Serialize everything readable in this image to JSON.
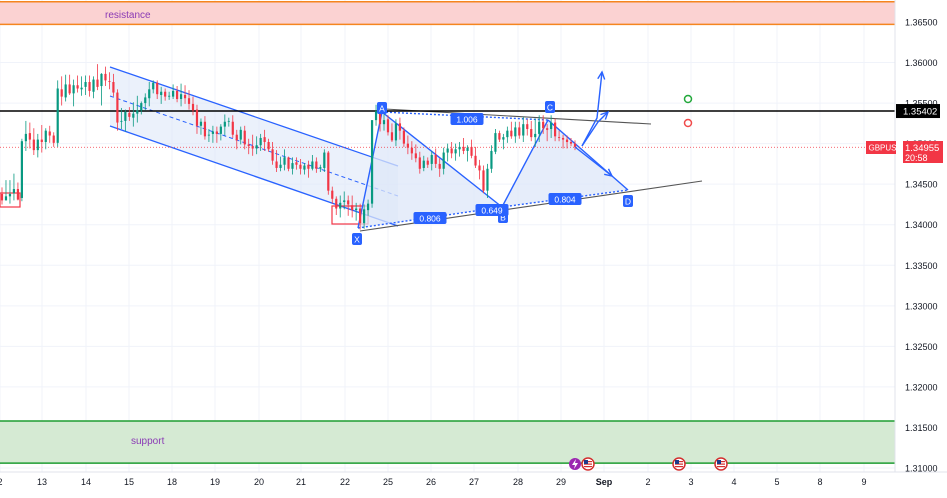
{
  "chart_data": {
    "type": "candlestick",
    "symbol": "GBPUSD",
    "x_tick_labels": [
      "2",
      "13",
      "14",
      "15",
      "18",
      "19",
      "20",
      "21",
      "22",
      "25",
      "26",
      "27",
      "28",
      "29",
      "Sep",
      "2",
      "3",
      "4",
      "5",
      "8",
      "9"
    ],
    "y_tick_labels": [
      "1.36500",
      "1.36000",
      "1.35500",
      "1.35000",
      "1.34500",
      "1.34000",
      "1.33500",
      "1.33000",
      "1.32500",
      "1.32000",
      "1.31500",
      "1.31000"
    ],
    "ylim": [
      1.3098,
      1.3683
    ],
    "price_levels": {
      "horizontal_line": {
        "value": 1.35402,
        "label": "1.35402"
      },
      "last_price": {
        "symbol": "GBPUSD",
        "value": 1.34955,
        "label": "1.34955",
        "countdown": "20:58"
      }
    },
    "zones": [
      {
        "name": "resistance",
        "label": "resistance",
        "from": 1.3647,
        "to": 1.3675,
        "color": "#fbd2d2",
        "border": "#f5851f"
      },
      {
        "name": "support",
        "label": "support",
        "from": 1.3106,
        "to": 1.3158,
        "color": "#d5ead3",
        "border": "#1f9d32"
      }
    ],
    "candles": [
      [
        0,
        1.3438,
        1.3446,
        1.3425,
        1.343
      ],
      [
        1,
        1.343,
        1.3455,
        1.343,
        1.3435
      ],
      [
        2,
        1.3435,
        1.3455,
        1.3426,
        1.3438
      ],
      [
        3,
        1.3439,
        1.3463,
        1.343,
        1.3444
      ],
      [
        4,
        1.3444,
        1.3452,
        1.343,
        1.3431
      ],
      [
        5,
        1.3433,
        1.3506,
        1.3429,
        1.3503
      ],
      [
        6,
        1.3503,
        1.3528,
        1.3491,
        1.3512
      ],
      [
        7,
        1.3513,
        1.3526,
        1.3494,
        1.3505
      ],
      [
        8,
        1.3505,
        1.3519,
        1.3486,
        1.3492
      ],
      [
        9,
        1.3492,
        1.3512,
        1.3483,
        1.3505
      ],
      [
        10,
        1.3505,
        1.3523,
        1.3489,
        1.3502
      ],
      [
        11,
        1.3502,
        1.3519,
        1.3493,
        1.3516
      ],
      [
        12,
        1.3515,
        1.3522,
        1.3501,
        1.351
      ],
      [
        13,
        1.351,
        1.3514,
        1.3496,
        1.3501
      ],
      [
        14,
        1.3501,
        1.3578,
        1.3496,
        1.3568
      ],
      [
        15,
        1.3567,
        1.3583,
        1.3547,
        1.3558
      ],
      [
        16,
        1.3557,
        1.3585,
        1.3552,
        1.3573
      ],
      [
        17,
        1.3573,
        1.3585,
        1.356,
        1.3562
      ],
      [
        18,
        1.3562,
        1.3579,
        1.3546,
        1.3572
      ],
      [
        19,
        1.3572,
        1.3584,
        1.3563,
        1.3568
      ],
      [
        20,
        1.3567,
        1.3583,
        1.3559,
        1.3569
      ],
      [
        21,
        1.357,
        1.3584,
        1.356,
        1.3576
      ],
      [
        22,
        1.3576,
        1.3584,
        1.3558,
        1.3565
      ],
      [
        23,
        1.3564,
        1.3583,
        1.3556,
        1.3579
      ],
      [
        24,
        1.3579,
        1.3598,
        1.3566,
        1.357
      ],
      [
        25,
        1.3571,
        1.3587,
        1.3547,
        1.3586
      ],
      [
        26,
        1.3586,
        1.3595,
        1.3571,
        1.3578
      ],
      [
        27,
        1.3577,
        1.3588,
        1.3567,
        1.3576
      ],
      [
        28,
        1.3576,
        1.3586,
        1.3558,
        1.3563
      ],
      [
        29,
        1.3563,
        1.3567,
        1.3516,
        1.3526
      ],
      [
        30,
        1.3527,
        1.3544,
        1.3518,
        1.3528
      ],
      [
        31,
        1.3528,
        1.3542,
        1.3515,
        1.3539
      ],
      [
        32,
        1.3538,
        1.3545,
        1.3528,
        1.3533
      ],
      [
        33,
        1.3532,
        1.3551,
        1.3521,
        1.3537
      ],
      [
        34,
        1.3537,
        1.3559,
        1.3526,
        1.3541
      ],
      [
        35,
        1.3541,
        1.3552,
        1.3536,
        1.355
      ],
      [
        36,
        1.355,
        1.3562,
        1.3541,
        1.3557
      ],
      [
        37,
        1.3556,
        1.3576,
        1.3546,
        1.3567
      ],
      [
        38,
        1.3567,
        1.3578,
        1.3562,
        1.3575
      ],
      [
        39,
        1.3575,
        1.3578,
        1.3555,
        1.3561
      ],
      [
        40,
        1.356,
        1.357,
        1.3549,
        1.3564
      ],
      [
        41,
        1.3564,
        1.3568,
        1.3553,
        1.3558
      ],
      [
        42,
        1.3559,
        1.3564,
        1.3554,
        1.3559
      ],
      [
        43,
        1.3558,
        1.3573,
        1.3555,
        1.3565
      ],
      [
        44,
        1.3565,
        1.3571,
        1.3551,
        1.3555
      ],
      [
        45,
        1.3555,
        1.3574,
        1.3546,
        1.3561
      ],
      [
        46,
        1.356,
        1.3572,
        1.3549,
        1.3556
      ],
      [
        47,
        1.3556,
        1.3566,
        1.3542,
        1.3549
      ],
      [
        48,
        1.3549,
        1.3558,
        1.3535,
        1.3541
      ],
      [
        49,
        1.3542,
        1.3548,
        1.3512,
        1.3522
      ],
      [
        50,
        1.3522,
        1.3531,
        1.3511,
        1.3527
      ],
      [
        51,
        1.3527,
        1.3534,
        1.3505,
        1.3509
      ],
      [
        52,
        1.351,
        1.3518,
        1.3502,
        1.3511
      ],
      [
        53,
        1.3512,
        1.3522,
        1.3501,
        1.3515
      ],
      [
        54,
        1.3515,
        1.3521,
        1.3501,
        1.3512
      ],
      [
        55,
        1.3512,
        1.3524,
        1.3504,
        1.3521
      ],
      [
        56,
        1.3521,
        1.3536,
        1.351,
        1.3527
      ],
      [
        57,
        1.3527,
        1.3532,
        1.3521,
        1.3528
      ],
      [
        58,
        1.3527,
        1.3535,
        1.3507,
        1.3511
      ],
      [
        59,
        1.3511,
        1.3517,
        1.3493,
        1.3504
      ],
      [
        60,
        1.3505,
        1.3521,
        1.3499,
        1.3517
      ],
      [
        61,
        1.3516,
        1.3522,
        1.3493,
        1.3499
      ],
      [
        62,
        1.3499,
        1.3506,
        1.3487,
        1.3497
      ],
      [
        63,
        1.3497,
        1.3511,
        1.3485,
        1.3494
      ],
      [
        64,
        1.3494,
        1.3509,
        1.3487,
        1.3498
      ],
      [
        65,
        1.3498,
        1.3512,
        1.3491,
        1.3507
      ],
      [
        66,
        1.3508,
        1.3517,
        1.3491,
        1.3502
      ],
      [
        67,
        1.3502,
        1.3506,
        1.349,
        1.3493
      ],
      [
        68,
        1.3493,
        1.3502,
        1.3474,
        1.3479
      ],
      [
        69,
        1.3478,
        1.3492,
        1.3465,
        1.347
      ],
      [
        70,
        1.347,
        1.3484,
        1.3466,
        1.3474
      ],
      [
        71,
        1.3474,
        1.3493,
        1.3467,
        1.3483
      ],
      [
        72,
        1.3483,
        1.3484,
        1.3466,
        1.3469
      ],
      [
        73,
        1.3469,
        1.3483,
        1.3462,
        1.3476
      ],
      [
        74,
        1.3477,
        1.3483,
        1.3468,
        1.3474
      ],
      [
        75,
        1.3474,
        1.3481,
        1.3462,
        1.3469
      ],
      [
        76,
        1.3468,
        1.3476,
        1.3462,
        1.3473
      ],
      [
        77,
        1.3474,
        1.3479,
        1.3458,
        1.3469
      ],
      [
        78,
        1.3469,
        1.3486,
        1.3467,
        1.3478
      ],
      [
        79,
        1.3478,
        1.3483,
        1.3464,
        1.3469
      ],
      [
        80,
        1.3469,
        1.3474,
        1.3465,
        1.3471
      ],
      [
        81,
        1.347,
        1.3493,
        1.3465,
        1.3489
      ],
      [
        82,
        1.3489,
        1.3491,
        1.3437,
        1.3442
      ],
      [
        83,
        1.3442,
        1.3447,
        1.3426,
        1.3432
      ],
      [
        84,
        1.3432,
        1.3435,
        1.3412,
        1.342
      ],
      [
        85,
        1.342,
        1.3436,
        1.3409,
        1.3427
      ],
      [
        86,
        1.3428,
        1.3441,
        1.3419,
        1.343
      ],
      [
        87,
        1.343,
        1.3436,
        1.3411,
        1.3425
      ],
      [
        88,
        1.3424,
        1.3436,
        1.3409,
        1.3418
      ],
      [
        89,
        1.3418,
        1.3427,
        1.3405,
        1.342
      ],
      [
        90,
        1.342,
        1.3426,
        1.3394,
        1.3402
      ],
      [
        91,
        1.3402,
        1.3425,
        1.3395,
        1.3419
      ],
      [
        92,
        1.3418,
        1.3431,
        1.3411,
        1.3426
      ],
      [
        93,
        1.3426,
        1.3529,
        1.3421,
        1.3529
      ],
      [
        94,
        1.3529,
        1.3548,
        1.3522,
        1.354
      ],
      [
        95,
        1.354,
        1.3546,
        1.3515,
        1.3524
      ],
      [
        96,
        1.3524,
        1.3538,
        1.3516,
        1.3529
      ],
      [
        97,
        1.353,
        1.3535,
        1.351,
        1.3514
      ],
      [
        98,
        1.3514,
        1.3525,
        1.3502,
        1.3504
      ],
      [
        99,
        1.3504,
        1.353,
        1.3497,
        1.3525
      ],
      [
        100,
        1.3525,
        1.3532,
        1.3505,
        1.3516
      ],
      [
        101,
        1.3516,
        1.352,
        1.3496,
        1.35
      ],
      [
        102,
        1.35,
        1.351,
        1.3487,
        1.3495
      ],
      [
        103,
        1.3495,
        1.3503,
        1.348,
        1.3488
      ],
      [
        104,
        1.3488,
        1.3499,
        1.3477,
        1.3482
      ],
      [
        105,
        1.3483,
        1.349,
        1.3463,
        1.3469
      ],
      [
        106,
        1.347,
        1.3485,
        1.3466,
        1.3479
      ],
      [
        107,
        1.3479,
        1.3483,
        1.347,
        1.3474
      ],
      [
        108,
        1.3475,
        1.3491,
        1.3467,
        1.3486
      ],
      [
        109,
        1.3486,
        1.3494,
        1.347,
        1.3475
      ],
      [
        110,
        1.3475,
        1.3482,
        1.3459,
        1.3469
      ],
      [
        111,
        1.3469,
        1.3495,
        1.3462,
        1.3489
      ],
      [
        112,
        1.3489,
        1.35,
        1.3478,
        1.3494
      ],
      [
        113,
        1.3494,
        1.3502,
        1.3482,
        1.3488
      ],
      [
        114,
        1.3488,
        1.35,
        1.3479,
        1.3493
      ],
      [
        115,
        1.3493,
        1.3502,
        1.3484,
        1.3496
      ],
      [
        116,
        1.3496,
        1.3507,
        1.3487,
        1.3491
      ],
      [
        117,
        1.3491,
        1.3498,
        1.3478,
        1.3495
      ],
      [
        118,
        1.3496,
        1.3505,
        1.3482,
        1.3485
      ],
      [
        119,
        1.3485,
        1.3496,
        1.347,
        1.3473
      ],
      [
        120,
        1.3473,
        1.348,
        1.3456,
        1.3467
      ],
      [
        121,
        1.3467,
        1.3473,
        1.3439,
        1.3442
      ],
      [
        122,
        1.3442,
        1.3475,
        1.3433,
        1.3469
      ],
      [
        123,
        1.3469,
        1.3498,
        1.3464,
        1.3491
      ],
      [
        124,
        1.349,
        1.3518,
        1.3487,
        1.3513
      ],
      [
        125,
        1.3513,
        1.3516,
        1.3502,
        1.3505
      ],
      [
        126,
        1.3505,
        1.3512,
        1.3493,
        1.3508
      ],
      [
        127,
        1.3508,
        1.3521,
        1.3501,
        1.3516
      ],
      [
        128,
        1.3516,
        1.3527,
        1.3506,
        1.3509
      ],
      [
        129,
        1.3509,
        1.3527,
        1.3501,
        1.352
      ],
      [
        130,
        1.352,
        1.3527,
        1.3506,
        1.351
      ],
      [
        131,
        1.351,
        1.3533,
        1.3502,
        1.3524
      ],
      [
        132,
        1.3524,
        1.353,
        1.351,
        1.3518
      ],
      [
        133,
        1.3518,
        1.3528,
        1.3503,
        1.3508
      ],
      [
        134,
        1.3508,
        1.3531,
        1.3496,
        1.3512
      ],
      [
        135,
        1.3512,
        1.3535,
        1.3502,
        1.3527
      ],
      [
        136,
        1.3527,
        1.3535,
        1.3512,
        1.3519
      ],
      [
        137,
        1.3519,
        1.3524,
        1.3503,
        1.3517
      ],
      [
        138,
        1.3518,
        1.3535,
        1.3507,
        1.3526
      ],
      [
        139,
        1.3526,
        1.3531,
        1.3503,
        1.3509
      ],
      [
        140,
        1.3508,
        1.3516,
        1.3503,
        1.3507
      ],
      [
        141,
        1.3507,
        1.3511,
        1.3494,
        1.3505
      ],
      [
        142,
        1.3505,
        1.351,
        1.3494,
        1.3502
      ],
      [
        143,
        1.3502,
        1.3507,
        1.3497,
        1.35
      ],
      [
        144,
        1.35,
        1.3504,
        1.3492,
        1.3496
      ]
    ],
    "harmonic_pattern": {
      "points": [
        {
          "label": "X",
          "value": 1.3393,
          "x_label": "22"
        },
        {
          "label": "A",
          "value": 1.3545,
          "x_label": "25"
        },
        {
          "label": "B",
          "value": 1.342,
          "x_label": "27"
        },
        {
          "label": "C",
          "value": 1.3545,
          "x_label": "29"
        },
        {
          "label": "D",
          "value": 1.3445,
          "x_label": "Sep"
        }
      ],
      "ratios": [
        "0.806",
        "0.649",
        "1.006",
        "0.804"
      ]
    },
    "descending_channel": {
      "from_x_label": "14",
      "to_x_label": "25"
    },
    "zones_text": [
      "resistance",
      "support"
    ]
  },
  "bottom_marker_icons": [
    "flash-icon",
    "us-flag-icon",
    "us-flag-icon",
    "us-flag-icon"
  ],
  "status_circles": [
    {
      "name": "green-circle-icon",
      "color": "#22a83a"
    },
    {
      "name": "red-circle-icon",
      "color": "#f04a4a"
    }
  ],
  "colors": {
    "up": "#089981",
    "down": "#f23645",
    "pattern": "#2962ff",
    "pattern_fill": "#dde7f8",
    "grid": "#f0f3fa",
    "axis_text": "#131722",
    "price_tag": "#f23645"
  }
}
